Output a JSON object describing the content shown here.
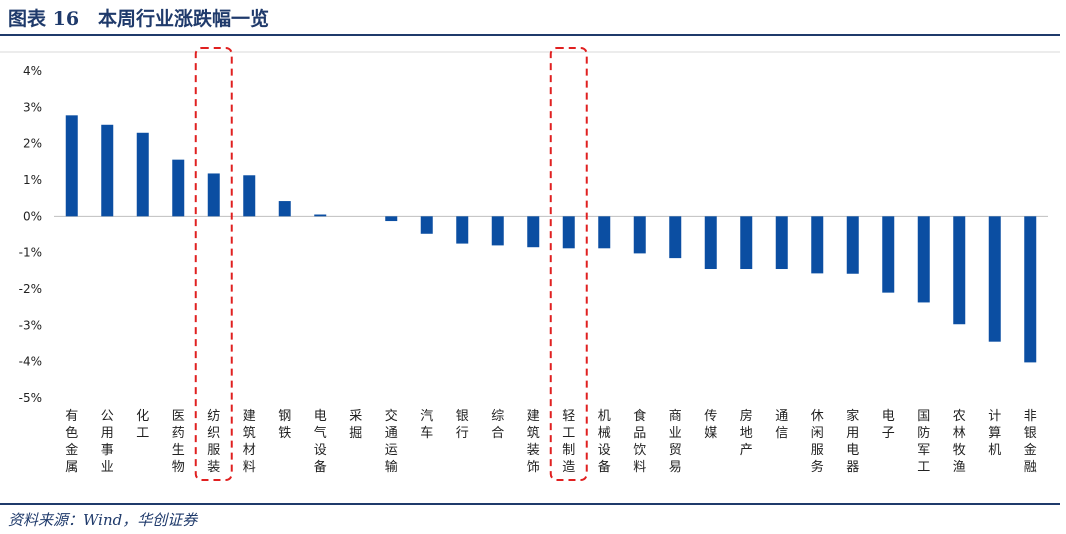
{
  "figure": {
    "title": "图表 16　本周行业涨跌幅一览",
    "source": "资料来源：Wind，华创证券"
  },
  "colors": {
    "bar": "#0b4ea2",
    "highlight_box": "#e02020",
    "header_rule": "#1f3a6b"
  },
  "chart_data": {
    "type": "bar",
    "categories": [
      "有色金属",
      "公用事业",
      "化工",
      "医药生物",
      "纺织服装",
      "建筑材料",
      "钢铁",
      "电气设备",
      "采掘",
      "交通运输",
      "汽车",
      "银行",
      "综合",
      "建筑装饰",
      "轻工制造",
      "机械设备",
      "食品饮料",
      "商业贸易",
      "传媒",
      "房地产",
      "通信",
      "休闲服务",
      "家用电器",
      "电子",
      "国防军工",
      "农林牧渔",
      "计算机",
      "非银金融"
    ],
    "values": [
      2.78,
      2.52,
      2.3,
      1.56,
      1.18,
      1.13,
      0.42,
      0.05,
      0.0,
      -0.13,
      -0.48,
      -0.75,
      -0.8,
      -0.85,
      -0.88,
      -0.88,
      -1.02,
      -1.15,
      -1.45,
      -1.45,
      -1.45,
      -1.57,
      -1.58,
      -2.1,
      -2.37,
      -2.97,
      -3.45,
      -4.02
    ],
    "yticks": [
      4,
      3,
      2,
      1,
      0,
      -1,
      -2,
      -3,
      -4,
      -5
    ],
    "ytick_labels": [
      "4%",
      "3%",
      "2%",
      "1%",
      "0%",
      "-1%",
      "-2%",
      "-3%",
      "-4%",
      "-5%"
    ],
    "ylim": [
      -5,
      4
    ],
    "highlighted": [
      "纺织服装",
      "轻工制造"
    ],
    "grid": false,
    "legend": "none"
  }
}
